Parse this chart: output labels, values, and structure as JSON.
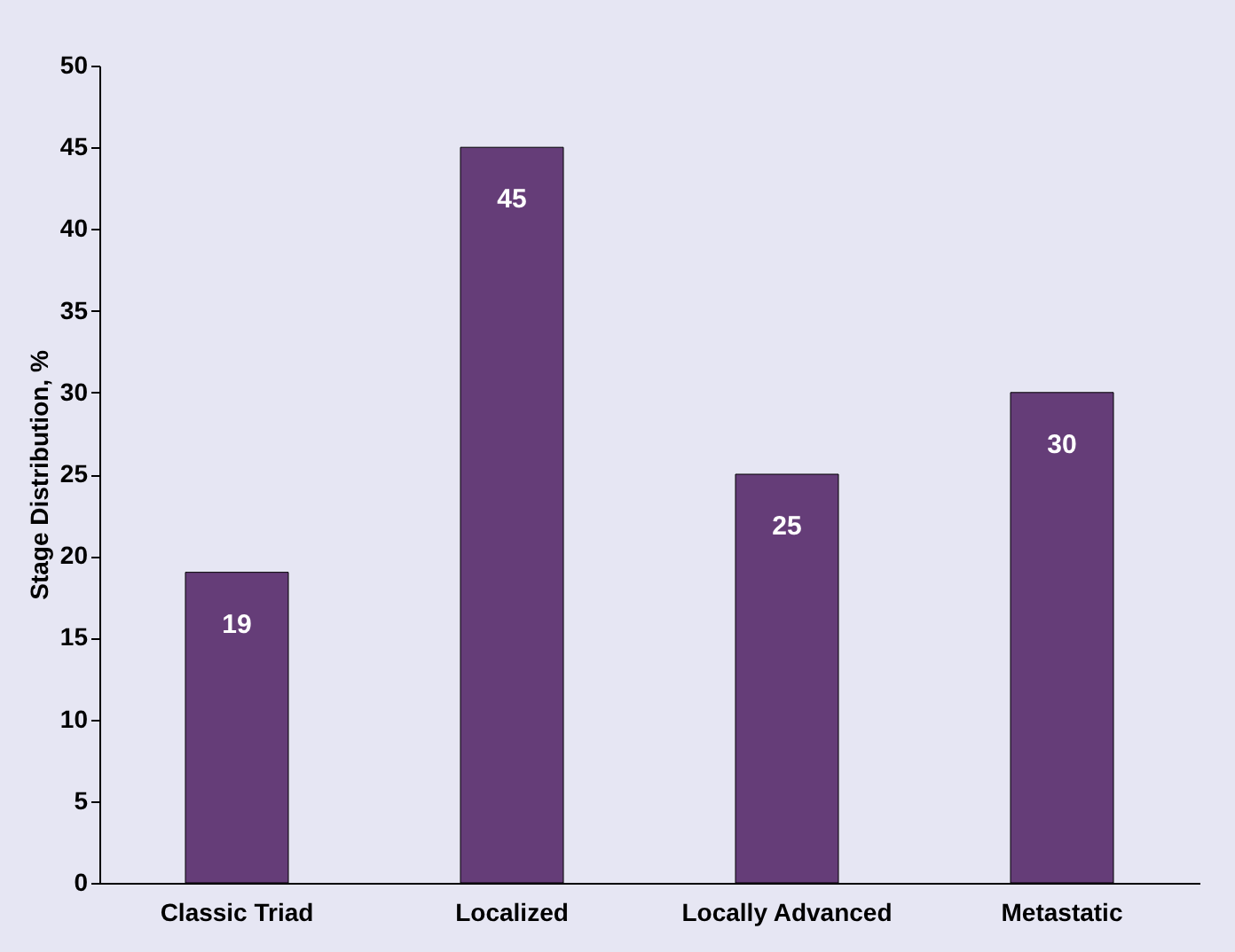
{
  "chart_data": {
    "type": "bar",
    "ylabel": "Stage Distribution, %",
    "categories": [
      "Classic Triad",
      "Localized",
      "Locally Advanced",
      "Metastatic"
    ],
    "values": [
      19,
      45,
      25,
      30
    ],
    "color": "#653d78",
    "ylim": [
      0,
      50
    ],
    "yticks": [
      0,
      5,
      10,
      15,
      20,
      25,
      30,
      35,
      40,
      45,
      50
    ],
    "grid": false,
    "data_labels": true
  }
}
